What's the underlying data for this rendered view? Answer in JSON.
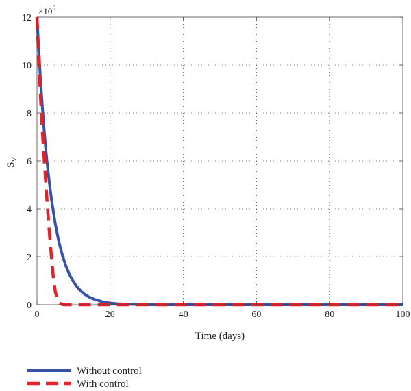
{
  "chart_data": {
    "type": "line",
    "title": "",
    "xlabel": "Time (days)",
    "ylabel": "S",
    "ylabel_sub": "V",
    "y_multiplier": "×10",
    "y_multiplier_exp": "6",
    "xlim": [
      0,
      100
    ],
    "ylim": [
      0,
      12
    ],
    "xticks": [
      0,
      20,
      40,
      60,
      80,
      100
    ],
    "yticks": [
      0,
      2,
      4,
      6,
      8,
      10,
      12
    ],
    "grid": true,
    "legend_position": "below-left",
    "series": [
      {
        "name": "Without control",
        "color": "#3653a8",
        "style": "solid",
        "x": [
          0,
          0.5,
          1,
          1.5,
          2,
          2.5,
          3,
          3.5,
          4,
          5,
          6,
          7,
          8,
          9,
          10,
          11,
          12,
          13,
          14,
          15,
          16,
          18,
          20,
          22,
          25,
          30,
          40,
          50,
          60,
          70,
          80,
          90,
          100
        ],
        "values": [
          12.0,
          10.6,
          9.3,
          8.2,
          7.2,
          6.35,
          5.6,
          4.95,
          4.35,
          3.38,
          2.62,
          2.03,
          1.58,
          1.22,
          0.95,
          0.74,
          0.57,
          0.44,
          0.34,
          0.27,
          0.21,
          0.12,
          0.07,
          0.04,
          0.02,
          0.0,
          0.0,
          0.0,
          0.0,
          0.0,
          0.0,
          0.0,
          0.0
        ]
      },
      {
        "name": "With control",
        "color": "#e8202a",
        "style": "dashed",
        "x": [
          0,
          0.25,
          0.5,
          0.75,
          1,
          1.5,
          2,
          2.5,
          3,
          3.5,
          4,
          4.5,
          5,
          5.5,
          6,
          6.5,
          7,
          7.5,
          8,
          10,
          20,
          40,
          60,
          80,
          100
        ],
        "values": [
          12.0,
          11.1,
          10.2,
          9.4,
          8.6,
          7.2,
          6.0,
          4.9,
          3.8,
          2.8,
          1.9,
          1.1,
          0.55,
          0.25,
          0.1,
          0.04,
          0.01,
          0.0,
          0.0,
          0.0,
          0.0,
          0.0,
          0.0,
          0.0,
          0.0
        ]
      }
    ]
  }
}
